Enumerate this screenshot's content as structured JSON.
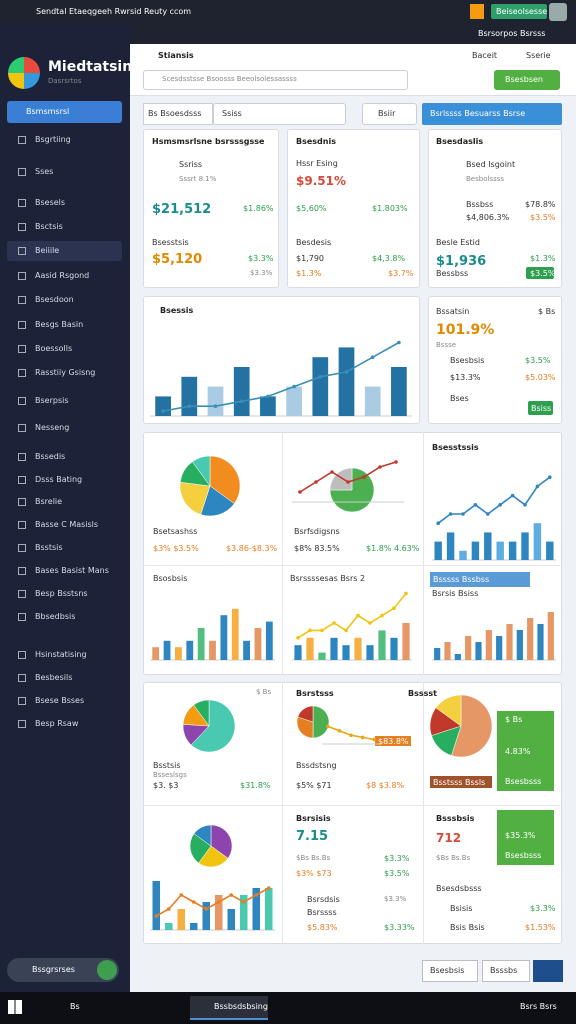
{
  "window": {
    "title": "Sendtal Etaeqgeeh Rwrsid Reuty ccom",
    "button": "Beiseolsesse"
  },
  "sidebar": {
    "brand": "Miedtatsin",
    "subtitle": "Dasrsrtos",
    "active": "Bsmsmsrsl",
    "items": [
      "Bsgrtiing",
      "Sses",
      "Bsesels",
      "Bsctsis",
      "Beiiile",
      "Aasid Rsgond",
      "Bsesdoon",
      "Besgs Basin",
      "Boessolls",
      "Rasstiiy Gsisng",
      "Bserpsis",
      "Nesseng",
      "Bssedis",
      "Dsss Bating",
      "Bsrelie",
      "Basse C Masisls",
      "Bsstsis",
      "Bases Basist Mans",
      "Besp Bsstsns",
      "Bbsedbsis",
      "Hsinstatising",
      "Besbesils",
      "Bsese Bsses",
      "Besp Rsaw"
    ],
    "footer": "Bssgrsrses"
  },
  "header": {
    "top_links": "Bsrsorpos Bsrsss",
    "title": "Stiansis",
    "links": [
      "Baceit",
      "Sserie"
    ],
    "search": "Scesdsstsse Bsoosss Beeolsolessassss",
    "button": "Bsesbsen"
  },
  "toolbar": {
    "filter": "Bs Bsoesdsss",
    "field": "Ssiss",
    "search": "Bsiir",
    "action": "Bsrlssss Besuarss Bsrse"
  },
  "cards": [
    {
      "lines": [
        "Hsmsmsrlsne bsrsssgsse",
        "Ssriss",
        "Sssrt  8.1%",
        "$21,512",
        "$1.86%",
        "Bsesstsis",
        "$5,120",
        "$3.3%",
        "$3.3%"
      ]
    },
    {
      "lines": [
        "Bsesdnis",
        "Hssr Esing",
        "$9.51%",
        "$5,60%",
        "$1.803%",
        "Besdesis",
        "$1,790",
        "$4,3.8%",
        "$1.3%",
        "$3.7%"
      ]
    },
    {
      "lines": [
        "Bsesdaslis",
        "Bsed Isgoint",
        "Besbolssss",
        "Bssbss",
        "$78.8%",
        "$4,806.3%",
        "$3.5%",
        "Besle Estid",
        "$1,936",
        "$1.3%",
        "Bessbss",
        "$3.5%"
      ]
    },
    {
      "lines": [
        "Bsessis"
      ]
    },
    {
      "lines": [
        "Bssatsin",
        "$ Bs",
        "101.9%",
        "Bssse",
        "Bsesbsis",
        "$3.5%",
        "$13.3%",
        "$5.03%",
        "Bses",
        "Bsiss"
      ]
    },
    {
      "lines": [
        "Bsetsashss",
        "$3%  $3.5%",
        "$3.86-$8.3%",
        "Bsrfsdigsns",
        "$8%  83.5%",
        "$1.8%  4.63%",
        "Bsesstssis",
        "Bsosbsis",
        "Bsrssssesas Bsrs 2",
        "Bsssss Bssbss",
        "Bsrsis Bsiss"
      ]
    },
    {
      "lines": [
        "$ Bs",
        "Bsstsis",
        "Bsseslsgs",
        "$3. $3",
        "$31.8%",
        "Bsrstsss",
        "Bsssst",
        "Bssdstsng",
        "$5%  $71",
        "$8  $3.8%",
        "$83.8%",
        "$ Bs",
        "4.83%",
        "Bsesbsss",
        "Bsstsss Bssls"
      ]
    },
    {
      "lines": [
        "Bsrsisis",
        "7.15",
        "$Bs Bs.Bs",
        "$3.3%",
        "$3%  $73",
        "$3.5%",
        "Bsrsdsis",
        "$3.3%",
        "Bsrssss",
        "$5.83%",
        "$3.33%",
        "Bsssbsis",
        "712",
        "$Bs Bs.Bs",
        "$35.3%",
        "Bsesbsss",
        "Bsesdsbsss",
        "Bsisis",
        "$3.3%",
        "Bsis Bsis",
        "$1.53%"
      ]
    }
  ],
  "footer": {
    "buttons": [
      "Bsesbsis",
      "Bsssbs"
    ]
  },
  "taskbar": {
    "search": "Bs",
    "app": "Bssbsdsbsing",
    "clock": "Bsrs Bsrs"
  },
  "charts": [
    {
      "type": "bar",
      "ylim": [
        0,
        10
      ],
      "series": [
        {
          "type": "bar",
          "colors": [
            "#2471a3",
            "#2471a3",
            "#a9cce3",
            "#2471a3",
            "#2471a3",
            "#a9cce3",
            "#2471a3",
            "#2471a3",
            "#a9cce3",
            "#2471a3"
          ],
          "values": [
            2,
            4,
            3,
            5,
            2,
            3,
            6,
            7,
            3,
            5
          ]
        },
        {
          "type": "line",
          "color": "#3a8fb7",
          "values": [
            0.5,
            1,
            1,
            1.5,
            2,
            3,
            4,
            4.5,
            6,
            7.5
          ]
        }
      ]
    },
    {
      "type": "pie",
      "values": [
        35,
        20,
        22,
        13,
        10
      ],
      "colors": [
        "#f28c1e",
        "#2e86c1",
        "#f4d03f",
        "#27ae60",
        "#48c9b0"
      ]
    },
    {
      "type": "pie",
      "values": [
        75,
        25
      ],
      "colors": [
        "#4caf50",
        "#bdbdbd"
      ]
    },
    {
      "type": "line",
      "ylim": [
        0,
        10
      ],
      "series": [
        {
          "type": "line",
          "color": "#c0392b",
          "values": [
            2,
            4,
            6,
            4,
            5,
            7,
            8
          ]
        }
      ]
    },
    {
      "type": "bar",
      "ylim": [
        0,
        10
      ],
      "series": [
        {
          "type": "bar",
          "colors": [
            "#2e86c1",
            "#2e86c1",
            "#5dade2",
            "#2e86c1",
            "#2e86c1",
            "#5dade2",
            "#2e86c1",
            "#2e86c1",
            "#5dade2",
            "#2e86c1"
          ],
          "values": [
            2,
            3,
            1,
            2,
            3,
            2,
            2,
            3,
            4,
            2
          ]
        },
        {
          "type": "line",
          "color": "#2e86c1",
          "values": [
            4,
            5,
            5,
            6,
            5,
            6,
            7,
            6,
            8,
            9
          ]
        }
      ]
    },
    {
      "type": "bar",
      "ylim": [
        0,
        10
      ],
      "series": [
        {
          "type": "bar",
          "colors": [
            "#e59866",
            "#2e86c1",
            "#f5b041",
            "#2e86c1",
            "#52be80",
            "#e59866",
            "#2e86c1",
            "#f5b041",
            "#2e86c1",
            "#e59866",
            "#2e86c1"
          ],
          "values": [
            2,
            3,
            2,
            3,
            5,
            3,
            7,
            8,
            3,
            5,
            6
          ]
        }
      ]
    },
    {
      "type": "bar",
      "ylim": [
        0,
        10
      ],
      "series": [
        {
          "type": "bar",
          "colors": [
            "#2e86c1",
            "#f5b041",
            "#52be80",
            "#2e86c1",
            "#2e86c1",
            "#f5b041",
            "#2e86c1",
            "#52be80",
            "#2e86c1",
            "#e59866"
          ],
          "values": [
            2,
            3,
            1,
            3,
            2,
            3,
            2,
            4,
            3,
            5
          ]
        },
        {
          "type": "line",
          "color": "#f1c40f",
          "values": [
            3,
            4,
            4,
            5,
            4,
            6,
            5,
            6,
            7,
            9
          ]
        }
      ]
    },
    {
      "type": "bar",
      "ylim": [
        0,
        10
      ],
      "series": [
        {
          "type": "bar",
          "colors": [
            "#2e86c1",
            "#e59866",
            "#2e86c1",
            "#e59866",
            "#2e86c1",
            "#e59866",
            "#2e86c1",
            "#e59866",
            "#2e86c1",
            "#e59866",
            "#2e86c1",
            "#e59866"
          ],
          "values": [
            2,
            3,
            1,
            4,
            3,
            5,
            4,
            6,
            5,
            7,
            6,
            8
          ]
        }
      ]
    },
    {
      "type": "pie",
      "values": [
        62,
        14,
        14,
        10
      ],
      "colors": [
        "#48c9b0",
        "#8e44ad",
        "#f39c12",
        "#27ae60"
      ]
    },
    {
      "type": "pie",
      "values": [
        50,
        30,
        20
      ],
      "colors": [
        "#4caf50",
        "#e67e22",
        "#c0392b"
      ]
    },
    {
      "type": "line",
      "ylim": [
        0,
        10
      ],
      "series": [
        {
          "type": "line",
          "color": "#e6a817",
          "values": [
            8,
            6,
            4,
            3,
            2
          ]
        }
      ]
    },
    {
      "type": "pie",
      "values": [
        55,
        15,
        15,
        15
      ],
      "colors": [
        "#e59866",
        "#27ae60",
        "#c0392b",
        "#f4d03f"
      ]
    },
    {
      "type": "pie",
      "values": [
        35,
        25,
        25,
        15
      ],
      "colors": [
        "#8e44ad",
        "#f1c40f",
        "#27ae60",
        "#2e86c1"
      ]
    },
    {
      "type": "bar",
      "ylim": [
        0,
        10
      ],
      "series": [
        {
          "type": "bar",
          "colors": [
            "#2e86c1",
            "#48c9b0",
            "#f5b041",
            "#2e86c1",
            "#2e86c1",
            "#e59866",
            "#2e86c1",
            "#48c9b0",
            "#2e86c1",
            "#48c9b0"
          ],
          "values": [
            7,
            1,
            3,
            1,
            4,
            5,
            3,
            5,
            6,
            6
          ]
        },
        {
          "type": "line",
          "color": "#e67e22",
          "values": [
            2,
            3,
            5,
            4,
            3,
            4,
            5,
            4,
            5,
            6
          ]
        }
      ]
    }
  ]
}
